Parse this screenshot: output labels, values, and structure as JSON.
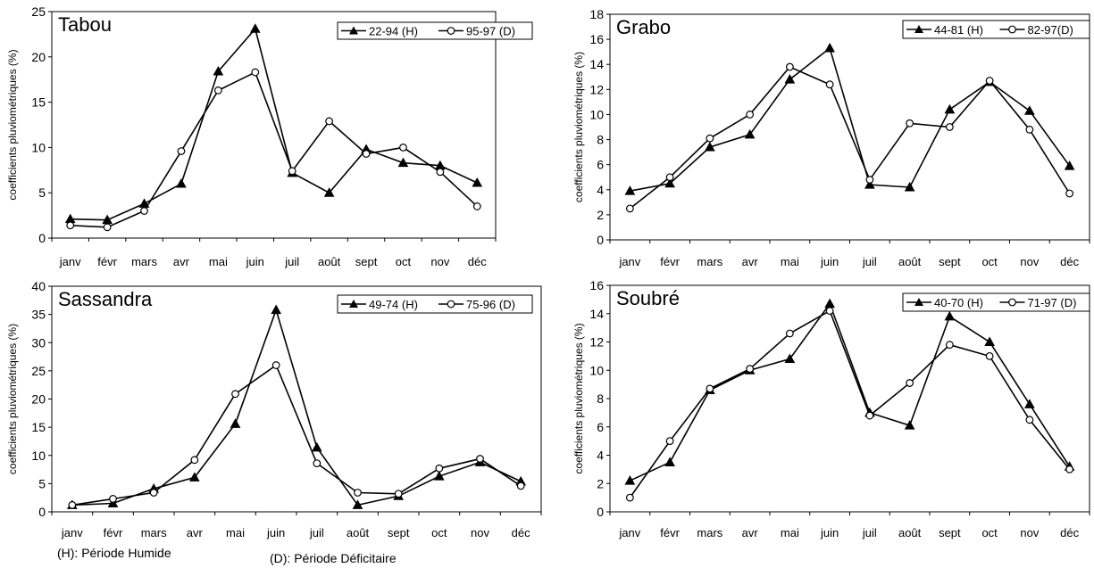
{
  "chart_data": [
    {
      "type": "line",
      "title": "Tabou",
      "ylabel": "coefficients pluviométriques (%)",
      "categories": [
        "janv",
        "févr",
        "mars",
        "avr",
        "mai",
        "juin",
        "juil",
        "août",
        "sept",
        "oct",
        "nov",
        "déc"
      ],
      "ylim": [
        0,
        25
      ],
      "yticks": [
        0,
        5,
        10,
        15,
        20,
        25
      ],
      "legend_position": "top-right",
      "series": [
        {
          "name": "22-94 (H)",
          "marker": "triangle-filled",
          "values": [
            2.1,
            2.0,
            3.8,
            6.0,
            18.4,
            23.1,
            7.2,
            5.0,
            9.8,
            8.3,
            8.0,
            6.1
          ]
        },
        {
          "name": "95-97 (D)",
          "marker": "circle-open",
          "values": [
            1.4,
            1.2,
            3.0,
            9.6,
            16.3,
            18.3,
            7.4,
            12.9,
            9.3,
            10.0,
            7.3,
            3.5
          ]
        }
      ]
    },
    {
      "type": "line",
      "title": "Grabo",
      "ylabel": "coefficients pluviométriques (%)",
      "categories": [
        "janv",
        "févr",
        "mars",
        "avr",
        "mai",
        "juin",
        "juil",
        "août",
        "sept",
        "oct",
        "nov",
        "déc"
      ],
      "ylim": [
        0,
        18
      ],
      "yticks": [
        0,
        2,
        4,
        6,
        8,
        10,
        12,
        14,
        16,
        18
      ],
      "legend_position": "top-right",
      "series": [
        {
          "name": "44-81 (H)",
          "marker": "triangle-filled",
          "values": [
            3.9,
            4.5,
            7.4,
            8.4,
            12.8,
            15.3,
            4.4,
            4.2,
            10.4,
            12.6,
            10.3,
            5.9
          ]
        },
        {
          "name": "82-97(D)",
          "marker": "circle-open",
          "values": [
            2.5,
            5.0,
            8.1,
            10.0,
            13.8,
            12.4,
            4.8,
            9.3,
            9.0,
            12.7,
            8.8,
            3.7
          ]
        }
      ]
    },
    {
      "type": "line",
      "title": "Sassandra",
      "ylabel": "coefficients pluviométriques (%)",
      "categories": [
        "janv",
        "févr",
        "mars",
        "avr",
        "mai",
        "juin",
        "juil",
        "août",
        "sept",
        "oct",
        "nov",
        "déc"
      ],
      "ylim": [
        0,
        40
      ],
      "yticks": [
        0,
        5,
        10,
        15,
        20,
        25,
        30,
        35,
        40
      ],
      "legend_position": "top-right",
      "series": [
        {
          "name": "49-74 (H)",
          "marker": "triangle-filled",
          "values": [
            1.2,
            1.5,
            4.1,
            6.1,
            15.6,
            35.8,
            11.4,
            1.2,
            2.8,
            6.3,
            8.8,
            5.4
          ]
        },
        {
          "name": "75-96 (D)",
          "marker": "circle-open",
          "values": [
            1.2,
            2.3,
            3.4,
            9.2,
            20.9,
            26.0,
            8.6,
            3.4,
            3.2,
            7.7,
            9.4,
            4.6
          ]
        }
      ]
    },
    {
      "type": "line",
      "title": "Soubré",
      "ylabel": "coefficients pluviométriques (%)",
      "categories": [
        "janv",
        "févr",
        "mars",
        "avr",
        "mai",
        "juin",
        "juil",
        "août",
        "sept",
        "oct",
        "nov",
        "déc"
      ],
      "ylim": [
        0,
        16
      ],
      "yticks": [
        0,
        2,
        4,
        6,
        8,
        10,
        12,
        14,
        16
      ],
      "legend_position": "top-right",
      "series": [
        {
          "name": "40-70 (H)",
          "marker": "triangle-filled",
          "values": [
            2.2,
            3.5,
            8.6,
            10.0,
            10.8,
            14.7,
            7.0,
            6.1,
            13.8,
            12.0,
            7.6,
            3.2
          ]
        },
        {
          "name": "71-97 (D)",
          "marker": "circle-open",
          "values": [
            1.0,
            5.0,
            8.7,
            10.1,
            12.6,
            14.2,
            6.8,
            9.1,
            11.8,
            11.0,
            6.5,
            3.0
          ]
        }
      ]
    }
  ],
  "footnotes": {
    "humide": "(H): Période Humide",
    "deficitaire": "(D): Période Déficitaire"
  }
}
